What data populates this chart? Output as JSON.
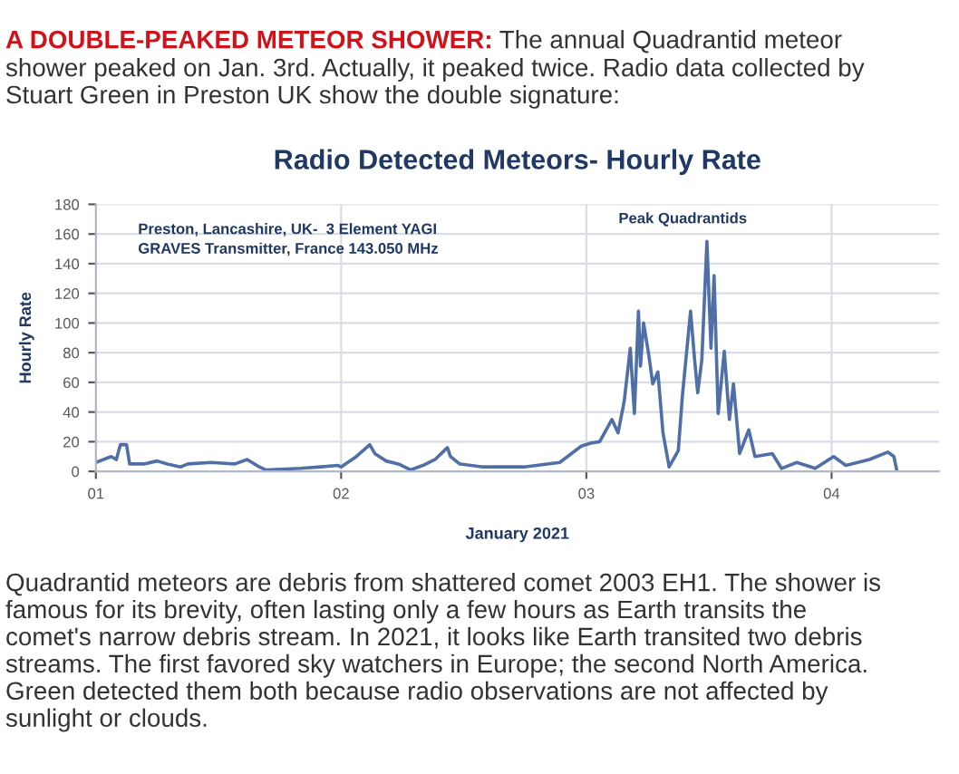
{
  "chart_data": {
    "type": "line",
    "title": "Radio Detected Meteors- Hourly Rate",
    "xlabel": "January 2021",
    "ylabel": "Hourly Rate",
    "annotations": [
      "A DOUBLE-PEAKED METEOR SHOWER:",
      "The annual Quadrantid meteor\nshower peaked on Jan. 3rd. Actually, it peaked twice. Radio data collected by\nStuart Green in Preston UK show the double signature:",
      "Preston, Lancashire, UK-  3 Element YAGI\nGRAVES Transmitter, France 143.050 MHz",
      "Peak Quadrantids",
      "Quadrantid meteors are debris from shattered comet 2003 EH1. The shower is\nfamous for its brevity, often lasting only a few hours as Earth transits the\ncomet's narrow debris stream. In 2021, it looks like Earth transited two debris\nstreams. The first favored sky watchers in Europe; the second North America.\nGreen detected them both because radio observations are not affected by\nsunlight or clouds."
    ],
    "x": [
      "2021-01-01T00:00",
      "2021-01-01T01:30",
      "2021-01-01T02:00",
      "2021-01-01T02:24",
      "2021-01-01T03:00",
      "2021-01-01T03:18",
      "2021-01-01T04:42",
      "2021-01-01T06:00",
      "2021-01-01T07:00",
      "2021-01-01T08:18",
      "2021-01-01T09:00",
      "2021-01-01T11:18",
      "2021-01-01T13:36",
      "2021-01-01T14:48",
      "2021-01-01T16:00",
      "2021-01-01T16:36",
      "2021-01-01T20:00",
      "2021-01-01T22:00",
      "2021-01-01T23:42",
      "2021-01-02T00:00",
      "2021-01-02T01:30",
      "2021-01-02T02:48",
      "2021-01-02T03:18",
      "2021-01-02T04:24",
      "2021-01-02T05:36",
      "2021-01-02T06:48",
      "2021-01-02T08:00",
      "2021-01-02T09:12",
      "2021-01-02T10:24",
      "2021-01-02T10:42",
      "2021-01-02T11:36",
      "2021-01-02T13:54",
      "2021-01-02T17:54",
      "2021-01-02T21:24",
      "2021-01-02T23:30",
      "2021-01-03T00:24",
      "2021-01-03T01:18",
      "2021-01-03T02:30",
      "2021-01-03T03:06",
      "2021-01-03T03:42",
      "2021-01-03T04:18",
      "2021-01-03T04:42",
      "2021-01-03T05:06",
      "2021-01-03T05:18",
      "2021-01-03T05:36",
      "2021-01-03T06:06",
      "2021-01-03T06:30",
      "2021-01-03T07:00",
      "2021-01-03T07:30",
      "2021-01-03T08:06",
      "2021-01-03T09:00",
      "2021-01-03T09:24",
      "2021-01-03T10:12",
      "2021-01-03T10:36",
      "2021-01-03T10:54",
      "2021-01-03T11:18",
      "2021-01-03T11:48",
      "2021-01-03T12:12",
      "2021-01-03T12:30",
      "2021-01-03T12:54",
      "2021-01-03T13:30",
      "2021-01-03T14:00",
      "2021-01-03T14:24",
      "2021-01-03T15:00",
      "2021-01-03T15:54",
      "2021-01-03T16:30",
      "2021-01-03T18:12",
      "2021-01-03T19:06",
      "2021-01-03T20:36",
      "2021-01-03T22:24",
      "2021-01-04T00:12",
      "2021-01-04T01:24",
      "2021-01-04T03:42",
      "2021-01-04T05:30",
      "2021-01-04T06:06",
      "2021-01-04T06:24"
    ],
    "series": [
      {
        "color": "#4f6fa6",
        "values": [
          6,
          10,
          8,
          18,
          18,
          5,
          5,
          7,
          5,
          3,
          5,
          6,
          5,
          8,
          3,
          1,
          2,
          3,
          4,
          3,
          10,
          18,
          12,
          7,
          5,
          1,
          4,
          8,
          16,
          10,
          5,
          3,
          3,
          6,
          17,
          19,
          20,
          35,
          26,
          47,
          83,
          39,
          108,
          71,
          100,
          79,
          59,
          67,
          26,
          3,
          14,
          51,
          108,
          75,
          53,
          75,
          155,
          83,
          132,
          39,
          81,
          35,
          59,
          12,
          28,
          10,
          12,
          2,
          6,
          2,
          10,
          4,
          8,
          13,
          10,
          0
        ]
      }
    ],
    "xlim": [
      "2021-01-01T00:00",
      "2021-01-04T10:30"
    ],
    "xticks": [
      {
        "value": "2021-01-01",
        "label": "01"
      },
      {
        "value": "2021-01-02",
        "label": "02"
      },
      {
        "value": "2021-01-03",
        "label": "03"
      },
      {
        "value": "2021-01-04",
        "label": "04"
      }
    ],
    "ylim": [
      0,
      180
    ],
    "yticks": [
      0,
      20,
      40,
      60,
      80,
      100,
      120,
      140,
      160,
      180
    ],
    "grid": true,
    "marker": "none",
    "line_style": "solid"
  }
}
